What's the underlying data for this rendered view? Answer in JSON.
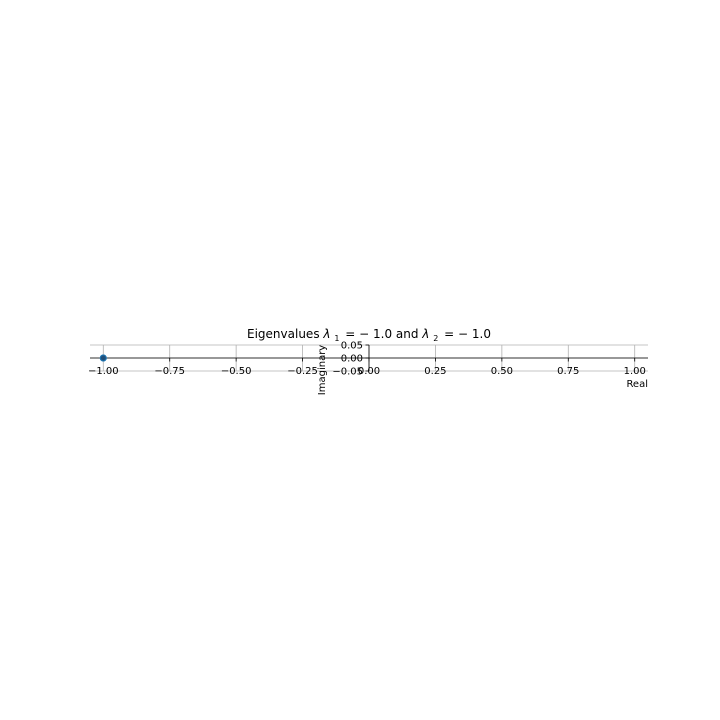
{
  "chart_data": {
    "type": "scatter",
    "title_prefix": "Eigenvalues ",
    "title_mid": " and ",
    "eigenvalues": [
      {
        "symbol": "λ",
        "subscript": "1",
        "equals": "= − 1.0",
        "real": -1.0,
        "imag": 0.0
      },
      {
        "symbol": "λ",
        "subscript": "2",
        "equals": "= − 1.0",
        "real": -1.0,
        "imag": 0.0
      }
    ],
    "xlabel": "Real",
    "ylabel": "Imaginary",
    "xlim": [
      -1.05,
      1.05
    ],
    "ylim": [
      -0.05,
      0.05
    ],
    "xticks": [
      -1.0,
      -0.75,
      -0.5,
      -0.25,
      0.0,
      0.25,
      0.5,
      0.75,
      1.0
    ],
    "xtick_labels": [
      "−1.00",
      "−0.75",
      "−0.50",
      "−0.25",
      "0.00",
      "0.25",
      "0.50",
      "0.75",
      "1.00"
    ],
    "yticks": [
      0.05,
      0.0,
      -0.05
    ],
    "ytick_labels": [
      "0.05",
      "0.00",
      "−0.05"
    ],
    "grid": true,
    "point_color": "#1f4e79",
    "point_edge": "#1f77b4"
  }
}
